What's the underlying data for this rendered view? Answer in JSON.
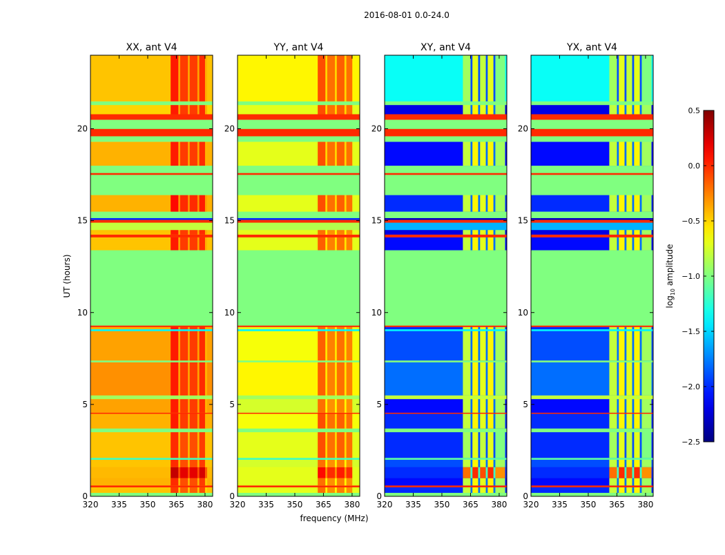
{
  "chart_data": {
    "type": "heatmap",
    "title": "2016-08-01 0.0-24.0",
    "xlabel": "frequency (MHz)",
    "ylabel": "UT (hours)",
    "xlim": [
      320,
      384
    ],
    "ylim": [
      0,
      24
    ],
    "xticks": [
      320,
      335,
      350,
      365,
      380
    ],
    "yticks": [
      0,
      5,
      10,
      15,
      20
    ],
    "colormap": "jet",
    "colorbar": {
      "label_main": "log",
      "label_sub": "10",
      "label_rest": " amplitude",
      "vmin": -2.5,
      "vmax": 0.5,
      "ticks": [
        0.5,
        0.0,
        -0.5,
        -1.0,
        -1.5,
        -2.0,
        -2.5
      ],
      "tick_labels": [
        "0.5",
        "0.0",
        "−0.5",
        "−1.0",
        "−1.5",
        "−2.0",
        "−2.5"
      ]
    },
    "panels": [
      {
        "title": "XX, ant V4",
        "rfi_band": [
          362,
          381
        ],
        "stripes": [
          [
            362,
            366,
            0.15
          ],
          [
            366,
            367,
            -0.25
          ],
          [
            367,
            371,
            0.05
          ],
          [
            371,
            372,
            -0.25
          ],
          [
            372,
            376,
            0.05
          ],
          [
            376,
            377,
            -0.25
          ],
          [
            377,
            380,
            0.1
          ],
          [
            380,
            381,
            -0.3
          ]
        ],
        "rows": [
          [
            0,
            0.2,
            -1.0,
            -1.0
          ],
          [
            0.2,
            0.5,
            -0.45,
            -0.2
          ],
          [
            0.5,
            0.6,
            0.0,
            0.0
          ],
          [
            0.6,
            1.0,
            -0.4,
            -0.15
          ],
          [
            1.0,
            1.6,
            -0.42,
            0.15
          ],
          [
            1.6,
            2.0,
            -0.45,
            -0.15
          ],
          [
            2.0,
            2.1,
            -1.2,
            -1.2
          ],
          [
            2.1,
            3.5,
            -0.45,
            -0.15
          ],
          [
            3.5,
            3.7,
            -1.0,
            -1.0
          ],
          [
            3.7,
            4.5,
            -0.4,
            -0.1
          ],
          [
            4.5,
            4.56,
            0.0,
            0.0
          ],
          [
            4.56,
            5.3,
            -0.35,
            -0.1
          ],
          [
            5.3,
            5.5,
            -0.9,
            -0.9
          ],
          [
            5.5,
            7.3,
            -0.3,
            -0.1
          ],
          [
            7.3,
            7.4,
            -1.0,
            -1.0
          ],
          [
            7.4,
            9.0,
            -0.35,
            -0.1
          ],
          [
            9.0,
            9.1,
            -1.4,
            -1.4
          ],
          [
            9.1,
            9.22,
            -0.4,
            -0.1
          ],
          [
            9.22,
            9.3,
            0.0,
            0.0
          ],
          [
            9.3,
            13.4,
            -1.0,
            -1.0
          ],
          [
            13.4,
            14.1,
            -0.45,
            -0.1
          ],
          [
            14.1,
            14.25,
            0.0,
            0.0
          ],
          [
            14.25,
            14.5,
            -0.45,
            -0.1
          ],
          [
            14.5,
            14.9,
            -0.8,
            -0.8
          ],
          [
            14.9,
            15.05,
            0.0,
            0.0
          ],
          [
            15.05,
            15.15,
            -2.0,
            -2.0
          ],
          [
            15.15,
            15.5,
            -1.0,
            -1.0
          ],
          [
            15.5,
            16.4,
            -0.4,
            -0.05
          ],
          [
            16.4,
            17.5,
            -1.0,
            -1.0
          ],
          [
            17.5,
            17.6,
            0.0,
            0.0
          ],
          [
            17.6,
            18.0,
            -1.0,
            -1.0
          ],
          [
            18.0,
            19.3,
            -0.4,
            -0.1
          ],
          [
            19.3,
            19.6,
            -1.0,
            -1.0
          ],
          [
            19.6,
            20.0,
            0.0,
            0.0
          ],
          [
            20.0,
            20.5,
            -1.0,
            -1.0
          ],
          [
            20.5,
            20.8,
            0.0,
            0.0
          ],
          [
            20.8,
            21.3,
            -0.5,
            -0.1
          ],
          [
            21.3,
            21.5,
            -1.0,
            -1.0
          ],
          [
            21.5,
            24,
            -0.45,
            -0.1
          ]
        ]
      },
      {
        "title": "YY, ant V4",
        "rfi_band": [
          362,
          380
        ],
        "stripes": [
          [
            362,
            366,
            0.1
          ],
          [
            366,
            367,
            -0.3
          ],
          [
            367,
            371,
            0.0
          ],
          [
            371,
            372,
            -0.3
          ],
          [
            372,
            376,
            0.05
          ],
          [
            376,
            377,
            -0.3
          ],
          [
            377,
            380,
            0.0
          ]
        ],
        "rows": [
          [
            0,
            0.2,
            -1.0,
            -1.0
          ],
          [
            0.2,
            0.5,
            -0.7,
            -0.3
          ],
          [
            0.5,
            0.6,
            0.0,
            0.0
          ],
          [
            0.6,
            1.0,
            -0.7,
            -0.3
          ],
          [
            1.0,
            1.6,
            -0.7,
            0.0
          ],
          [
            1.6,
            2.0,
            -0.75,
            -0.3
          ],
          [
            2.0,
            2.1,
            -1.2,
            -1.2
          ],
          [
            2.1,
            3.5,
            -0.7,
            -0.2
          ],
          [
            3.5,
            3.7,
            -1.0,
            -1.0
          ],
          [
            3.7,
            4.5,
            -0.65,
            -0.2
          ],
          [
            4.5,
            4.56,
            0.0,
            0.0
          ],
          [
            4.56,
            5.3,
            -0.75,
            -0.3
          ],
          [
            5.3,
            5.5,
            -0.9,
            -0.9
          ],
          [
            5.5,
            7.3,
            -0.6,
            -0.25
          ],
          [
            7.3,
            7.4,
            -1.0,
            -1.0
          ],
          [
            7.4,
            9.0,
            -0.65,
            -0.25
          ],
          [
            9.0,
            9.1,
            -1.4,
            -1.4
          ],
          [
            9.1,
            9.22,
            -0.7,
            -0.3
          ],
          [
            9.22,
            9.3,
            0.0,
            0.0
          ],
          [
            9.3,
            13.4,
            -1.0,
            -1.0
          ],
          [
            13.4,
            14.1,
            -0.7,
            -0.25
          ],
          [
            14.1,
            14.25,
            0.0,
            0.0
          ],
          [
            14.25,
            14.5,
            -0.7,
            -0.3
          ],
          [
            14.5,
            14.9,
            -0.85,
            -0.85
          ],
          [
            14.9,
            15.05,
            0.0,
            0.0
          ],
          [
            15.05,
            15.15,
            -2.0,
            -2.0
          ],
          [
            15.15,
            15.5,
            -1.0,
            -1.0
          ],
          [
            15.5,
            16.4,
            -0.7,
            -0.2
          ],
          [
            16.4,
            17.5,
            -1.0,
            -1.0
          ],
          [
            17.5,
            17.6,
            0.0,
            0.0
          ],
          [
            17.6,
            18.0,
            -1.0,
            -1.0
          ],
          [
            18.0,
            19.3,
            -0.7,
            -0.2
          ],
          [
            19.3,
            19.6,
            -1.0,
            -1.0
          ],
          [
            19.6,
            20.0,
            0.0,
            0.0
          ],
          [
            20.0,
            20.5,
            -1.0,
            -1.0
          ],
          [
            20.5,
            20.8,
            0.0,
            0.0
          ],
          [
            20.8,
            21.3,
            -0.7,
            -0.2
          ],
          [
            21.3,
            21.5,
            -1.0,
            -1.0
          ],
          [
            21.5,
            24,
            -0.6,
            -0.2
          ]
        ]
      },
      {
        "title": "XY, ant V4",
        "rfi_band": [
          361,
          383
        ],
        "stripes": [
          [
            361,
            365,
            0.0
          ],
          [
            365,
            366,
            -1.0
          ],
          [
            366,
            369,
            0.2
          ],
          [
            369,
            370,
            -1.0
          ],
          [
            370,
            373,
            0.1
          ],
          [
            373,
            374,
            -1.0
          ],
          [
            374,
            377,
            0.2
          ],
          [
            377,
            378,
            -1.0
          ],
          [
            378,
            383,
            -0.1
          ]
        ],
        "rows": [
          [
            0,
            0.2,
            -1.0,
            -1.0
          ],
          [
            0.2,
            0.5,
            -2.0,
            -0.8
          ],
          [
            0.5,
            0.6,
            0.0,
            0.0
          ],
          [
            0.6,
            1.0,
            -2.1,
            -0.8
          ],
          [
            1.0,
            1.6,
            -2.0,
            -0.2
          ],
          [
            1.6,
            2.0,
            -1.9,
            -0.8
          ],
          [
            2.0,
            2.1,
            -1.1,
            -1.1
          ],
          [
            2.1,
            3.5,
            -2.0,
            -0.9
          ],
          [
            3.5,
            3.7,
            -1.0,
            -1.0
          ],
          [
            3.7,
            4.5,
            -2.0,
            -0.8
          ],
          [
            4.5,
            4.56,
            0.0,
            0.0
          ],
          [
            4.56,
            5.3,
            -2.1,
            -0.8
          ],
          [
            5.3,
            5.5,
            -0.8,
            -0.8
          ],
          [
            5.5,
            7.3,
            -1.8,
            -0.8
          ],
          [
            7.3,
            7.4,
            -1.0,
            -1.0
          ],
          [
            7.4,
            9.0,
            -1.9,
            -0.8
          ],
          [
            9.0,
            9.1,
            -1.4,
            -1.4
          ],
          [
            9.1,
            9.22,
            -2.0,
            -0.8
          ],
          [
            9.22,
            9.3,
            0.0,
            0.0
          ],
          [
            9.3,
            13.4,
            -1.0,
            -1.0
          ],
          [
            13.4,
            14.1,
            -2.1,
            -0.8
          ],
          [
            14.1,
            14.25,
            0.0,
            0.0
          ],
          [
            14.25,
            14.5,
            -2.2,
            -0.8
          ],
          [
            14.5,
            14.9,
            -1.6,
            -1.6
          ],
          [
            14.9,
            15.05,
            0.0,
            0.0
          ],
          [
            15.05,
            15.15,
            -2.3,
            -2.3
          ],
          [
            15.15,
            15.5,
            -1.0,
            -1.0
          ],
          [
            15.5,
            16.4,
            -2.0,
            -0.8
          ],
          [
            16.4,
            17.5,
            -1.0,
            -1.0
          ],
          [
            17.5,
            17.6,
            0.0,
            0.0
          ],
          [
            17.6,
            18.0,
            -1.0,
            -1.0
          ],
          [
            18.0,
            19.3,
            -2.1,
            -0.8
          ],
          [
            19.3,
            19.6,
            -1.0,
            -1.0
          ],
          [
            19.6,
            20.0,
            0.0,
            0.0
          ],
          [
            20.0,
            20.5,
            -1.0,
            -1.0
          ],
          [
            20.5,
            20.8,
            0.0,
            0.0
          ],
          [
            20.8,
            21.3,
            -2.2,
            -0.8
          ],
          [
            21.3,
            21.5,
            -1.0,
            -1.0
          ],
          [
            21.5,
            24,
            -1.35,
            -0.9
          ]
        ]
      },
      {
        "title": "YX, ant V4",
        "rfi_band": [
          361,
          383
        ],
        "stripes": [
          [
            361,
            365,
            0.0
          ],
          [
            365,
            366,
            -1.0
          ],
          [
            366,
            369,
            0.2
          ],
          [
            369,
            370,
            -1.0
          ],
          [
            370,
            373,
            0.1
          ],
          [
            373,
            374,
            -1.0
          ],
          [
            374,
            377,
            0.2
          ],
          [
            377,
            378,
            -1.0
          ],
          [
            378,
            383,
            -0.1
          ]
        ],
        "rows": [
          [
            0,
            0.2,
            -1.0,
            -1.0
          ],
          [
            0.2,
            0.5,
            -2.0,
            -0.8
          ],
          [
            0.5,
            0.6,
            0.0,
            0.0
          ],
          [
            0.6,
            1.0,
            -2.1,
            -0.8
          ],
          [
            1.0,
            1.6,
            -2.0,
            -0.2
          ],
          [
            1.6,
            2.0,
            -1.9,
            -0.8
          ],
          [
            2.0,
            2.1,
            -1.1,
            -1.1
          ],
          [
            2.1,
            3.5,
            -2.0,
            -0.9
          ],
          [
            3.5,
            3.7,
            -1.0,
            -1.0
          ],
          [
            3.7,
            4.5,
            -2.0,
            -0.8
          ],
          [
            4.5,
            4.56,
            0.0,
            0.0
          ],
          [
            4.56,
            5.3,
            -2.1,
            -0.8
          ],
          [
            5.3,
            5.5,
            -0.8,
            -0.8
          ],
          [
            5.5,
            7.3,
            -1.8,
            -0.8
          ],
          [
            7.3,
            7.4,
            -1.0,
            -1.0
          ],
          [
            7.4,
            9.0,
            -1.9,
            -0.8
          ],
          [
            9.0,
            9.1,
            -1.4,
            -1.4
          ],
          [
            9.1,
            9.22,
            -2.0,
            -0.8
          ],
          [
            9.22,
            9.3,
            0.0,
            0.0
          ],
          [
            9.3,
            13.4,
            -1.0,
            -1.0
          ],
          [
            13.4,
            14.1,
            -2.1,
            -0.8
          ],
          [
            14.1,
            14.25,
            0.0,
            0.0
          ],
          [
            14.25,
            14.5,
            -2.2,
            -0.8
          ],
          [
            14.5,
            14.9,
            -1.6,
            -1.6
          ],
          [
            14.9,
            15.05,
            0.0,
            0.0
          ],
          [
            15.05,
            15.15,
            -2.3,
            -2.3
          ],
          [
            15.15,
            15.5,
            -1.0,
            -1.0
          ],
          [
            15.5,
            16.4,
            -2.0,
            -0.8
          ],
          [
            16.4,
            17.5,
            -1.0,
            -1.0
          ],
          [
            17.5,
            17.6,
            0.0,
            0.0
          ],
          [
            17.6,
            18.0,
            -1.0,
            -1.0
          ],
          [
            18.0,
            19.3,
            -2.1,
            -0.8
          ],
          [
            19.3,
            19.6,
            -1.0,
            -1.0
          ],
          [
            19.6,
            20.0,
            0.0,
            0.0
          ],
          [
            20.0,
            20.5,
            -1.0,
            -1.0
          ],
          [
            20.5,
            20.8,
            0.0,
            0.0
          ],
          [
            20.8,
            21.3,
            -2.2,
            -0.8
          ],
          [
            21.3,
            21.5,
            -1.0,
            -1.0
          ],
          [
            21.5,
            24,
            -1.35,
            -0.9
          ]
        ]
      }
    ]
  }
}
